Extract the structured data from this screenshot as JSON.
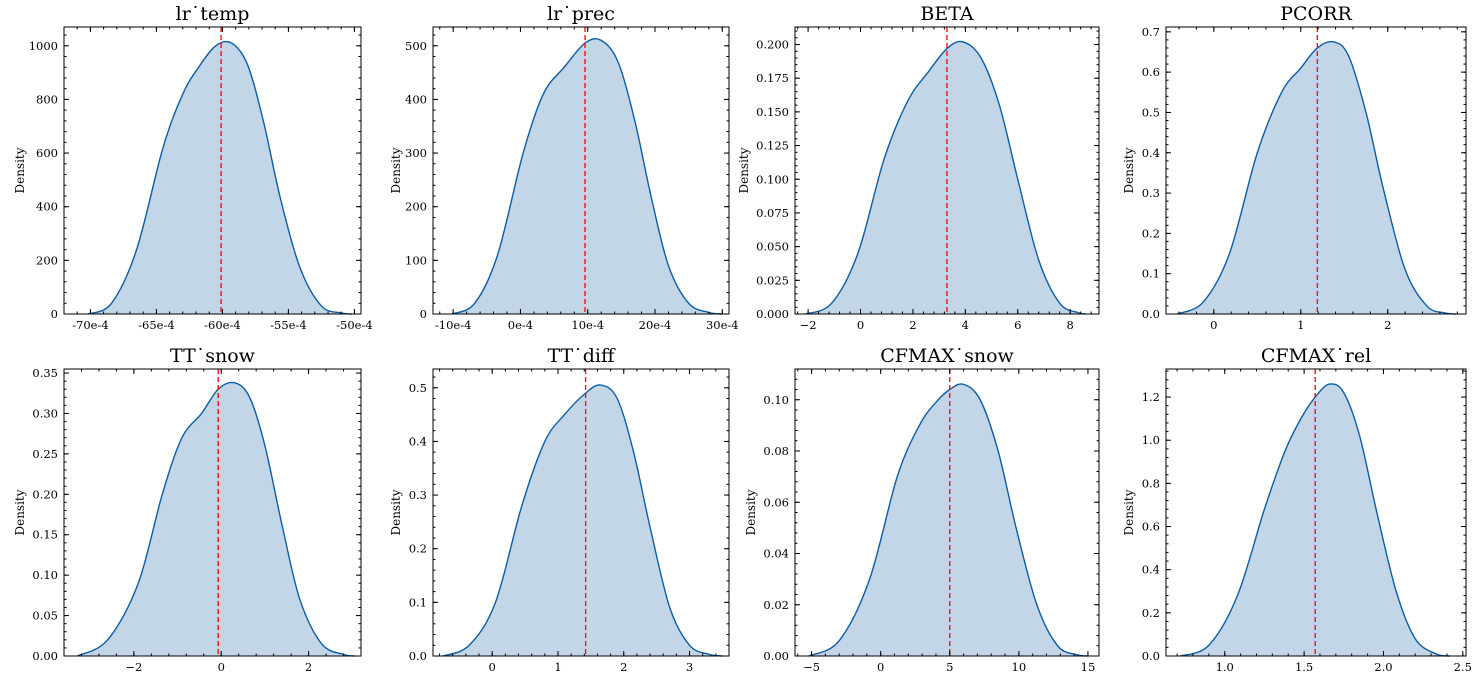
{
  "chart_data": [
    {
      "type": "area",
      "title": "lr˙temp",
      "ylabel": "Density",
      "xlim": [
        -72,
        -49.5
      ],
      "ylim": [
        0,
        1070
      ],
      "xticks": [
        -70,
        -65,
        -60,
        -55,
        -50
      ],
      "xtick_labels": [
        "-70e-4",
        "-65e-4",
        "-60e-4",
        "-55e-4",
        "-50e-4"
      ],
      "yticks": [
        0,
        200,
        400,
        600,
        800,
        1000
      ],
      "ytick_labels": [
        "0",
        "200",
        "400",
        "600",
        "800",
        "1000"
      ],
      "ref_value": -60.1,
      "x": [
        -70.2,
        -68.4,
        -66.5,
        -64.5,
        -63.0,
        -61.8,
        -60.5,
        -59.3,
        -58.1,
        -56.9,
        -55.6,
        -54.1,
        -52.5,
        -51.0,
        -50.2
      ],
      "y": [
        0,
        40,
        240,
        620,
        820,
        920,
        1000,
        1010,
        930,
        720,
        430,
        170,
        30,
        4,
        0
      ]
    },
    {
      "type": "area",
      "title": "lr˙prec",
      "ylabel": "Density",
      "xlim": [
        -13,
        31
      ],
      "ylim": [
        0,
        535
      ],
      "xticks": [
        -10,
        0,
        10,
        20,
        30
      ],
      "xtick_labels": [
        "-10e-4",
        "0e-4",
        "10e-4",
        "20e-4",
        "30e-4"
      ],
      "yticks": [
        0,
        100,
        200,
        300,
        400,
        500
      ],
      "ytick_labels": [
        "0",
        "100",
        "200",
        "300",
        "400",
        "500"
      ],
      "ref_value": 9.6,
      "x": [
        -10.2,
        -6.8,
        -3.4,
        0.4,
        3.4,
        6.5,
        9.6,
        12.0,
        14.5,
        17.0,
        19.4,
        22.0,
        25.0,
        28.0,
        30.0
      ],
      "y": [
        0,
        20,
        110,
        300,
        410,
        460,
        505,
        510,
        470,
        360,
        220,
        90,
        20,
        3,
        0
      ]
    },
    {
      "type": "area",
      "title": "BETA",
      "ylabel": "Density",
      "xlim": [
        -2.5,
        9.1
      ],
      "ylim": [
        0,
        0.213
      ],
      "xticks": [
        -2,
        0,
        2,
        4,
        6,
        8
      ],
      "xtick_labels": [
        "−2",
        "0",
        "2",
        "4",
        "6",
        "8"
      ],
      "yticks": [
        0,
        0.025,
        0.05,
        0.075,
        0.1,
        0.125,
        0.15,
        0.175,
        0.2
      ],
      "ytick_labels": [
        "0.000",
        "0.025",
        "0.050",
        "0.075",
        "0.100",
        "0.125",
        "0.150",
        "0.175",
        "0.200"
      ],
      "ref_value": 3.3,
      "x": [
        -2.1,
        -1.1,
        -0.1,
        0.9,
        1.8,
        2.6,
        3.3,
        3.9,
        4.6,
        5.3,
        6.0,
        6.8,
        7.6,
        8.3,
        8.6
      ],
      "y": [
        0,
        0.008,
        0.045,
        0.115,
        0.158,
        0.18,
        0.197,
        0.202,
        0.19,
        0.155,
        0.1,
        0.04,
        0.008,
        0.001,
        0
      ]
    },
    {
      "type": "area",
      "title": "PCORR",
      "ylabel": "Density",
      "xlim": [
        -0.55,
        2.9
      ],
      "ylim": [
        0,
        0.712
      ],
      "xticks": [
        0,
        1,
        2
      ],
      "xtick_labels": [
        "0",
        "1",
        "2"
      ],
      "yticks": [
        0,
        0.1,
        0.2,
        0.3,
        0.4,
        0.5,
        0.6,
        0.7
      ],
      "ytick_labels": [
        "0.0",
        "0.1",
        "0.2",
        "0.3",
        "0.4",
        "0.5",
        "0.6",
        "0.7"
      ],
      "ref_value": 1.19,
      "x": [
        -0.42,
        -0.12,
        0.18,
        0.5,
        0.78,
        1.0,
        1.19,
        1.38,
        1.55,
        1.75,
        1.95,
        2.2,
        2.45,
        2.65,
        2.78
      ],
      "y": [
        0,
        0.03,
        0.15,
        0.4,
        0.55,
        0.61,
        0.66,
        0.675,
        0.64,
        0.5,
        0.31,
        0.11,
        0.02,
        0.003,
        0
      ]
    },
    {
      "type": "area",
      "title": "TT˙snow",
      "ylabel": "Density",
      "xlim": [
        -3.6,
        3.2
      ],
      "ylim": [
        0,
        0.355
      ],
      "xticks": [
        -2,
        0,
        2
      ],
      "xtick_labels": [
        "−2",
        "0",
        "2"
      ],
      "yticks": [
        0,
        0.05,
        0.1,
        0.15,
        0.2,
        0.25,
        0.3,
        0.35
      ],
      "ytick_labels": [
        "0.00",
        "0.05",
        "0.10",
        "0.15",
        "0.20",
        "0.25",
        "0.30",
        "0.35"
      ],
      "ref_value": -0.07,
      "x": [
        -3.3,
        -2.6,
        -1.9,
        -1.35,
        -0.9,
        -0.45,
        -0.07,
        0.3,
        0.65,
        1.0,
        1.4,
        1.8,
        2.3,
        2.8,
        3.05
      ],
      "y": [
        0,
        0.02,
        0.09,
        0.2,
        0.27,
        0.3,
        0.33,
        0.338,
        0.32,
        0.26,
        0.16,
        0.07,
        0.015,
        0.002,
        0
      ]
    },
    {
      "type": "area",
      "title": "TT˙diff",
      "ylabel": "Density",
      "xlim": [
        -0.9,
        3.6
      ],
      "ylim": [
        0,
        0.535
      ],
      "xticks": [
        0,
        1,
        2,
        3
      ],
      "xtick_labels": [
        "0",
        "1",
        "2",
        "3"
      ],
      "yticks": [
        0,
        0.1,
        0.2,
        0.3,
        0.4,
        0.5
      ],
      "ytick_labels": [
        "0.0",
        "0.1",
        "0.2",
        "0.3",
        "0.4",
        "0.5"
      ],
      "ref_value": 1.42,
      "x": [
        -0.75,
        -0.35,
        0.05,
        0.45,
        0.8,
        1.1,
        1.42,
        1.65,
        1.9,
        2.15,
        2.4,
        2.7,
        3.0,
        3.3,
        3.5
      ],
      "y": [
        0,
        0.02,
        0.1,
        0.28,
        0.4,
        0.45,
        0.49,
        0.505,
        0.48,
        0.38,
        0.24,
        0.09,
        0.02,
        0.003,
        0
      ]
    },
    {
      "type": "area",
      "title": "CFMAX˙snow",
      "ylabel": "Density",
      "xlim": [
        -6.2,
        15.8
      ],
      "ylim": [
        0,
        0.112
      ],
      "xticks": [
        -5,
        0,
        5,
        10,
        15
      ],
      "xtick_labels": [
        "−5",
        "0",
        "5",
        "10",
        "15"
      ],
      "yticks": [
        0,
        0.02,
        0.04,
        0.06,
        0.08,
        0.1
      ],
      "ytick_labels": [
        "0.00",
        "0.02",
        "0.04",
        "0.06",
        "0.08",
        "0.10"
      ],
      "ref_value": 5.0,
      "x": [
        -5.2,
        -3.0,
        -0.8,
        1.2,
        2.8,
        4.0,
        5.0,
        6.0,
        7.2,
        8.5,
        9.8,
        11.3,
        12.8,
        14.2,
        15.0
      ],
      "y": [
        0,
        0.006,
        0.03,
        0.07,
        0.09,
        0.099,
        0.104,
        0.106,
        0.1,
        0.08,
        0.05,
        0.02,
        0.004,
        0.0005,
        0
      ]
    },
    {
      "type": "area",
      "title": "CFMAX˙rel",
      "ylabel": "Density",
      "xlim": [
        0.63,
        2.52
      ],
      "ylim": [
        0,
        1.33
      ],
      "xticks": [
        1.0,
        1.5,
        2.0,
        2.5
      ],
      "xtick_labels": [
        "1.0",
        "1.5",
        "2.0",
        "2.5"
      ],
      "yticks": [
        0,
        0.2,
        0.4,
        0.6,
        0.8,
        1.0,
        1.2
      ],
      "ytick_labels": [
        "0.0",
        "0.2",
        "0.4",
        "0.6",
        "0.8",
        "1.0",
        "1.2"
      ],
      "ref_value": 1.57,
      "x": [
        0.72,
        0.9,
        1.08,
        1.25,
        1.38,
        1.48,
        1.57,
        1.66,
        1.75,
        1.85,
        1.96,
        2.08,
        2.2,
        2.33,
        2.42
      ],
      "y": [
        0,
        0.05,
        0.28,
        0.68,
        0.95,
        1.1,
        1.2,
        1.26,
        1.22,
        1.02,
        0.66,
        0.3,
        0.08,
        0.01,
        0
      ]
    }
  ]
}
